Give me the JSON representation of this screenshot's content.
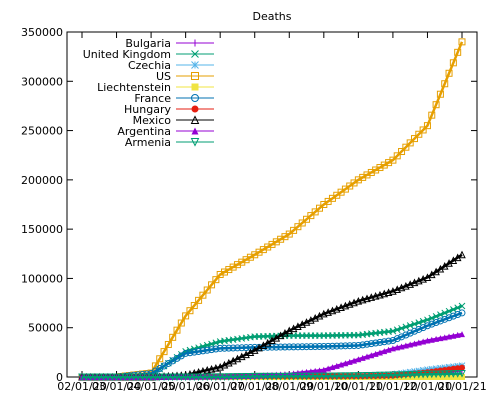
{
  "chart_data": {
    "type": "line",
    "title": "Deaths",
    "xlabel": "",
    "ylabel": "",
    "x_ticks": [
      "02/01/20",
      "03/01/20",
      "04/01/20",
      "05/01/20",
      "06/01/20",
      "07/01/20",
      "08/01/20",
      "09/01/20",
      "10/01/20",
      "11/01/20",
      "12/01/20",
      "01/01/21"
    ],
    "ylim": [
      0,
      350000
    ],
    "y_ticks": [
      0,
      50000,
      100000,
      150000,
      200000,
      250000,
      300000,
      350000
    ],
    "legend_position": "top-left",
    "grid": false,
    "x": [
      "02/01/20",
      "03/01/20",
      "04/01/20",
      "05/01/20",
      "06/01/20",
      "07/01/20",
      "08/01/20",
      "09/01/20",
      "10/01/20",
      "11/01/20",
      "12/01/20",
      "01/01/21"
    ],
    "series": [
      {
        "name": "Bulgaria",
        "color": "#9400d3",
        "marker": "plus",
        "values": [
          0,
          0,
          0,
          10,
          20,
          30,
          150,
          400,
          500,
          900,
          3800,
          6700
        ]
      },
      {
        "name": "United Kingdom",
        "color": "#009e73",
        "marker": "x",
        "values": [
          0,
          0,
          2000,
          26000,
          36000,
          41000,
          42000,
          42000,
          42500,
          46500,
          58000,
          72000
        ]
      },
      {
        "name": "Czechia",
        "color": "#56b4e9",
        "marker": "star",
        "values": [
          0,
          0,
          0,
          50,
          250,
          330,
          360,
          400,
          600,
          2600,
          7500,
          11500
        ]
      },
      {
        "name": "US",
        "color": "#e69f00",
        "marker": "square",
        "values": [
          0,
          0,
          4000,
          62000,
          104000,
          124000,
          145000,
          175000,
          200000,
          220000,
          255000,
          340000
        ]
      },
      {
        "name": "Liechtenstein",
        "color": "#f0e442",
        "marker": "filled-square",
        "values": [
          0,
          0,
          0,
          1,
          1,
          1,
          1,
          1,
          1,
          5,
          25,
          45
        ]
      },
      {
        "name": "France",
        "color": "#0072b2",
        "marker": "circle",
        "values": [
          0,
          0,
          3500,
          24000,
          29000,
          30000,
          30500,
          31000,
          32000,
          37000,
          52000,
          65000
        ]
      },
      {
        "name": "Hungary",
        "color": "#e51e10",
        "marker": "filled-circle",
        "values": [
          0,
          0,
          10,
          200,
          500,
          580,
          600,
          630,
          750,
          1300,
          4800,
          9500
        ]
      },
      {
        "name": "Mexico",
        "color": "#000000",
        "marker": "triangle",
        "values": [
          0,
          0,
          30,
          1900,
          10000,
          27000,
          47000,
          64000,
          77000,
          87000,
          101000,
          124000
        ]
      },
      {
        "name": "Argentina",
        "color": "#9400d3",
        "marker": "filled-triangle",
        "values": [
          0,
          0,
          20,
          250,
          550,
          1300,
          3100,
          7300,
          18000,
          29000,
          37000,
          43500
        ]
      },
      {
        "name": "Armenia",
        "color": "#009e73",
        "marker": "triangle-down",
        "values": [
          0,
          0,
          0,
          25,
          90,
          600,
          700,
          900,
          1300,
          2000,
          2800,
          3500
        ]
      }
    ]
  }
}
